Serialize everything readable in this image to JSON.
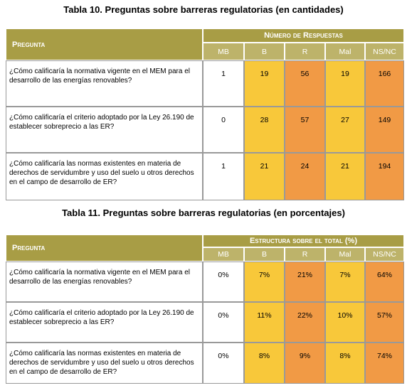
{
  "tables": [
    {
      "title": "Tabla 10. Preguntas sobre barreras regulatorias (en cantidades)",
      "question_header": "Pregunta",
      "group_header": "Número de Respuestas",
      "columns": [
        "MB",
        "B",
        "R",
        "Mal",
        "NS/NC"
      ],
      "rows": [
        {
          "question": "¿Cómo calificaría la normativa vigente en el MEM para el desarrollo de las energías renovables?",
          "values": [
            "1",
            "19",
            "56",
            "19",
            "166"
          ]
        },
        {
          "question": "¿Cómo calificaría el criterio adoptado por la Ley 26.190 de establecer sobreprecio a las ER?",
          "values": [
            "0",
            "28",
            "57",
            "27",
            "149"
          ]
        },
        {
          "question": "¿Cómo calificaría las normas existentes en materia de derechos de servidumbre y uso del suelo u otros derechos en el campo de desarrollo de ER?",
          "values": [
            "1",
            "21",
            "24",
            "21",
            "194"
          ]
        }
      ]
    },
    {
      "title": "Tabla 11. Preguntas sobre barreras regulatorias (en porcentajes)",
      "question_header": "Pregunta",
      "group_header": "Estructura sobre el total (%)",
      "columns": [
        "MB",
        "B",
        "R",
        "Mal",
        "NS/NC"
      ],
      "rows": [
        {
          "question": "¿Cómo calificaría la normativa vigente en el MEM para el desarrollo de las energías renovables?",
          "values": [
            "0%",
            "7%",
            "21%",
            "7%",
            "64%"
          ]
        },
        {
          "question": "¿Cómo calificaría el criterio adoptado por la Ley 26.190 de establecer sobreprecio a las ER?",
          "values": [
            "0%",
            "11%",
            "22%",
            "10%",
            "57%"
          ]
        },
        {
          "question": "¿Cómo calificaría las normas existentes en materia de derechos de servidumbre y uso del suelo u otros derechos en el campo de desarrollo de ER?",
          "values": [
            "0%",
            "8%",
            "9%",
            "8%",
            "74%"
          ]
        }
      ]
    }
  ]
}
